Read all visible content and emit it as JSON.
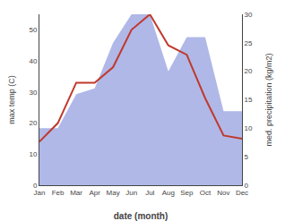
{
  "chart_data": {
    "type": "line",
    "categories": [
      "Jan",
      "Feb",
      "Mar",
      "Apr",
      "May",
      "Jun",
      "Jul",
      "Aug",
      "Sep",
      "Oct",
      "Nov",
      "Dec"
    ],
    "xlabel": "date (month)",
    "ylabel": "max temp (C)",
    "y2label": "med. precipitation (kg/m2)",
    "series": [
      {
        "type": "area",
        "color": "#b0b8e8",
        "axis": "y2",
        "values": [
          10,
          10,
          16,
          17,
          25,
          30,
          30,
          20,
          26,
          26,
          13,
          13
        ]
      },
      {
        "type": "line",
        "color": "#c0392b",
        "values": [
          14,
          20,
          33,
          33,
          38,
          50,
          55,
          45,
          42,
          28,
          16,
          15
        ]
      }
    ],
    "ylim": [
      0,
      55
    ],
    "yticks": [
      0,
      10,
      20,
      30,
      40,
      50
    ],
    "y2lim": [
      0,
      30
    ],
    "y2ticks": [
      0,
      5,
      10,
      15,
      20,
      25,
      30
    ],
    "grid": false
  }
}
